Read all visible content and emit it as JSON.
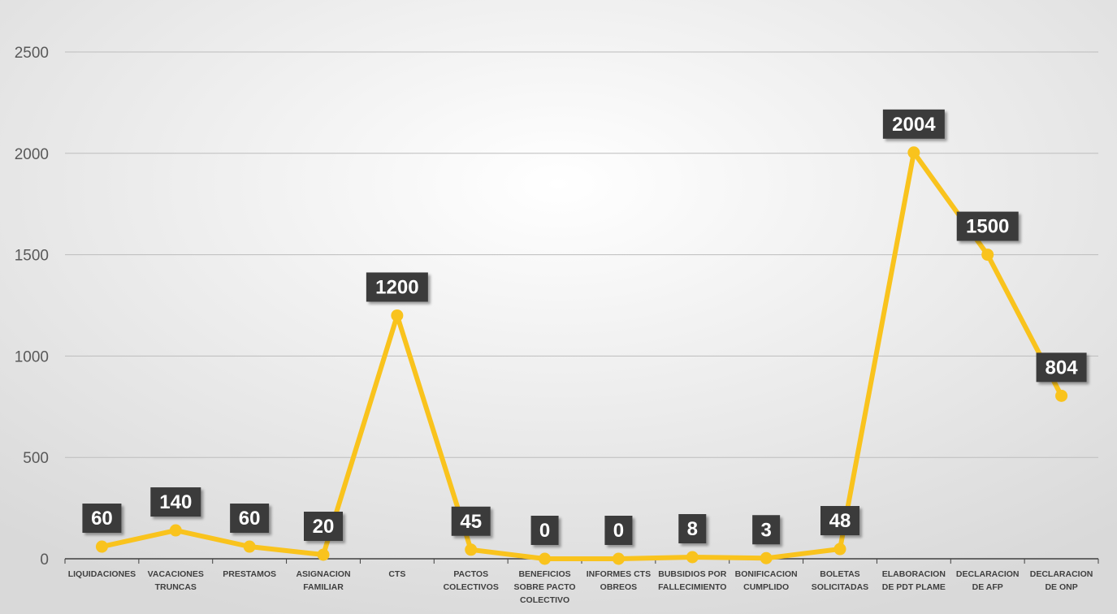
{
  "chart_data": {
    "type": "line",
    "title": "",
    "xlabel": "",
    "ylabel": "",
    "ylim": [
      0,
      2500
    ],
    "y_ticks": [
      "0",
      "500",
      "1000",
      "1500",
      "2000",
      "2500"
    ],
    "grid": true,
    "legend": "none",
    "categories": [
      [
        "LIQUIDACIONES"
      ],
      [
        "VACACIONES",
        "TRUNCAS"
      ],
      [
        "PRESTAMOS"
      ],
      [
        "ASIGNACION",
        "FAMILIAR"
      ],
      [
        "CTS"
      ],
      [
        "PACTOS",
        "COLECTIVOS"
      ],
      [
        "BENEFICIOS",
        "SOBRE PACTO",
        "COLECTIVO"
      ],
      [
        "INFORMES CTS",
        "OBREOS"
      ],
      [
        "BUBSIDIOS POR",
        "FALLECIMIENTO"
      ],
      [
        "BONIFICACION",
        "CUMPLIDO"
      ],
      [
        "BOLETAS",
        "SOLICITADAS"
      ],
      [
        "ELABORACION",
        "DE PDT PLAME"
      ],
      [
        "DECLARACION",
        "DE AFP"
      ],
      [
        "DECLARACION",
        "DE ONP"
      ]
    ],
    "series": [
      {
        "values": [
          60,
          140,
          60,
          20,
          1200,
          45,
          0,
          0,
          8,
          3,
          48,
          2004,
          1500,
          804
        ]
      }
    ],
    "data_labels": [
      "60",
      "140",
      "60",
      "20",
      "1200",
      "45",
      "0",
      "0",
      "8",
      "3",
      "48",
      "2004",
      "1500",
      "804"
    ],
    "colors": {
      "line": "#F9C31D",
      "label_bg": "#3A3A3A",
      "label_text": "#FFFFFF",
      "grid": "#BDBDBD",
      "axis": "#404040",
      "background_center": "#FFFFFF",
      "background_edge": "#D9D9D9"
    }
  }
}
